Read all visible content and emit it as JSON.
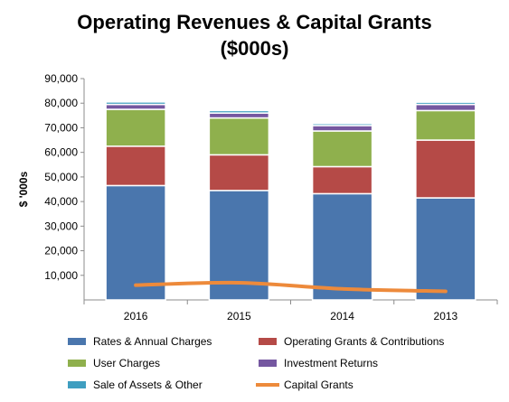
{
  "chart_data": {
    "type": "bar",
    "stacked": true,
    "title_lines": [
      "Operating Revenues & Capital Grants",
      "($000s)"
    ],
    "ylabel": "$ '000s",
    "xlabel": "",
    "ylim": [
      0,
      90000
    ],
    "y_ticks": [
      "10,000",
      "20,000",
      "30,000",
      "40,000",
      "50,000",
      "60,000",
      "70,000",
      "80,000",
      "90,000"
    ],
    "y_tick_values": [
      10000,
      20000,
      30000,
      40000,
      50000,
      60000,
      70000,
      80000,
      90000
    ],
    "grid": false,
    "legend_position": "bottom",
    "categories": [
      "2016",
      "2015",
      "2014",
      "2013"
    ],
    "series": [
      {
        "name": "Rates & Annual Charges",
        "type": "bar",
        "color": "#4a76ad",
        "values": [
          46500,
          44500,
          43200,
          41500
        ]
      },
      {
        "name": "Operating Grants & Contributions",
        "type": "bar",
        "color": "#b54a47",
        "values": [
          16000,
          14500,
          11000,
          23500
        ]
      },
      {
        "name": "User Charges",
        "type": "bar",
        "color": "#8fb04d",
        "values": [
          15000,
          15000,
          14500,
          12000
        ]
      },
      {
        "name": "Investment Returns",
        "type": "bar",
        "color": "#7557a0",
        "values": [
          2000,
          2000,
          2200,
          2500
        ]
      },
      {
        "name": "Sale of Assets & Other",
        "type": "bar",
        "color": "#3f9ec0",
        "values": [
          1000,
          1000,
          800,
          900
        ]
      },
      {
        "name": "Capital Grants",
        "type": "line",
        "color": "#ed8a3b",
        "values": [
          6000,
          7000,
          4500,
          3500
        ]
      }
    ]
  }
}
